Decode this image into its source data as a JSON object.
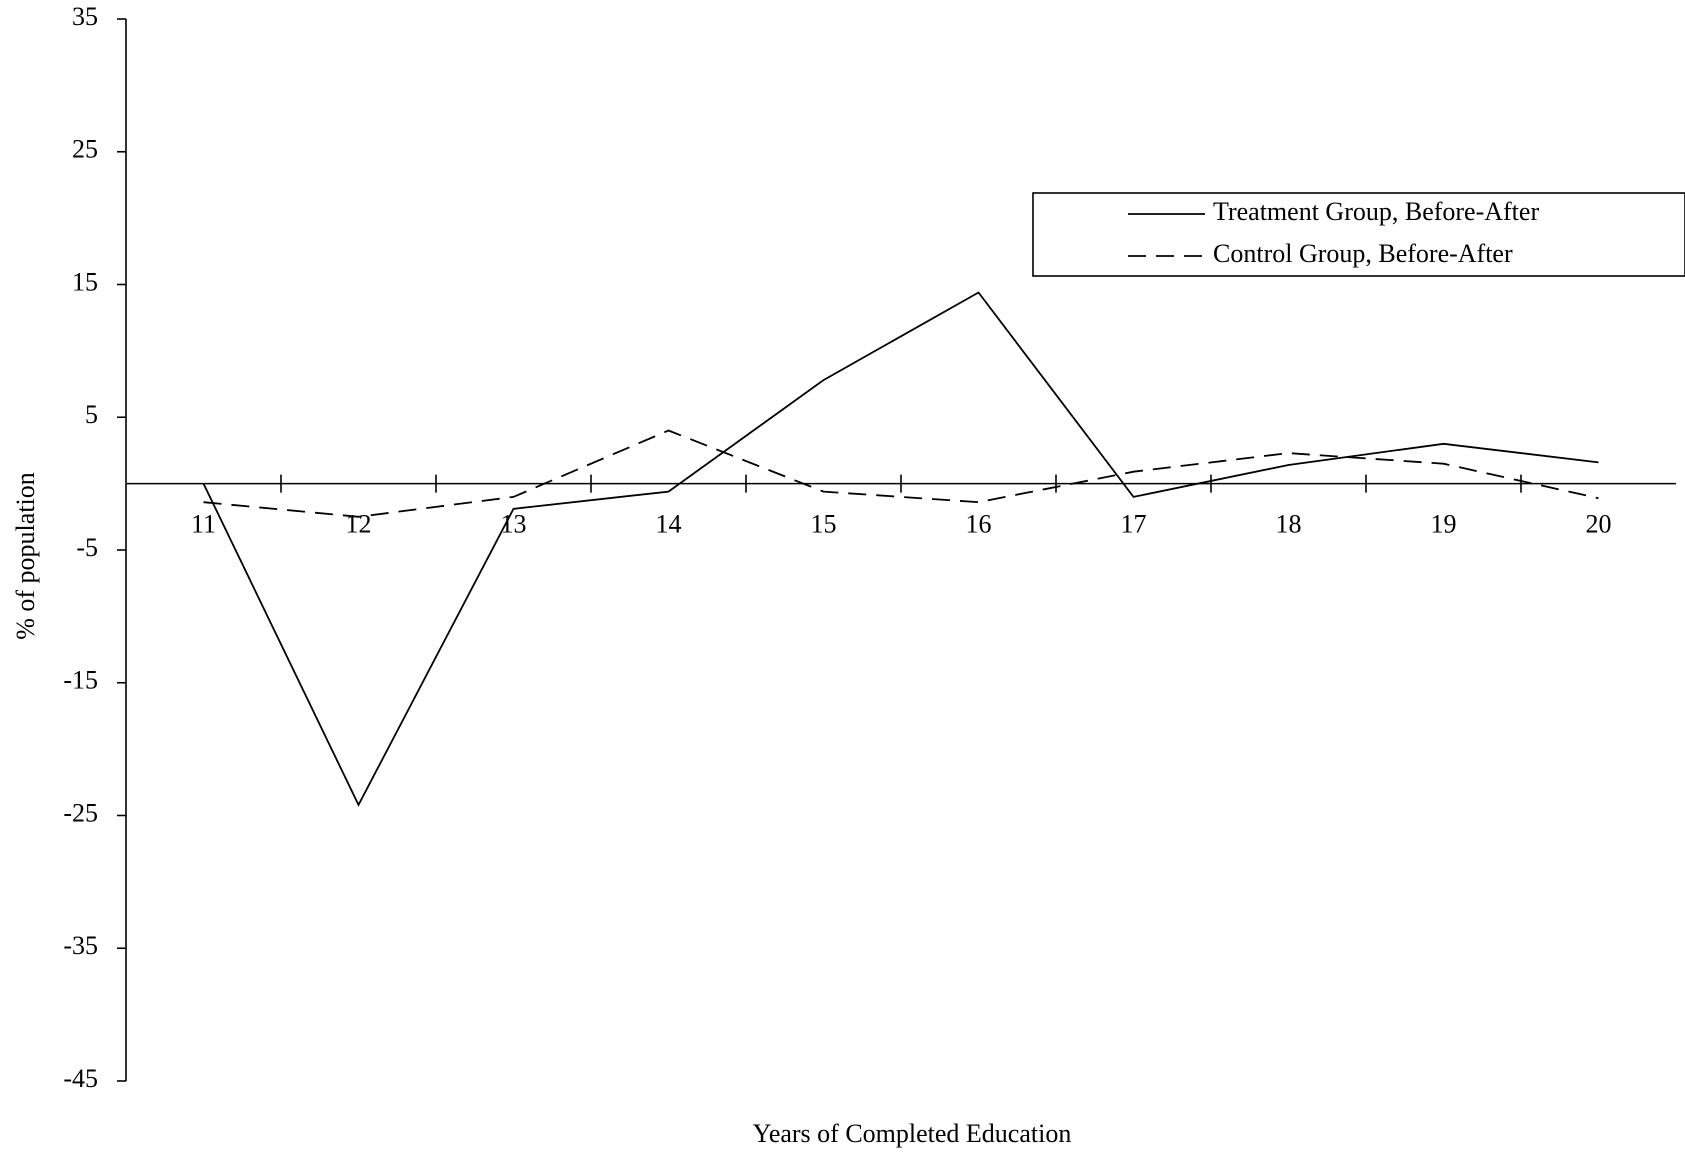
{
  "chart_data": {
    "type": "line",
    "x_label": "Years of Completed Education",
    "y_label": "% of population",
    "categories": [
      "11",
      "12",
      "13",
      "14",
      "15",
      "16",
      "17",
      "18",
      "19",
      "20"
    ],
    "series": [
      {
        "name": "Treatment Group, Before-After",
        "color": "#000000",
        "style": "solid",
        "values": [
          0,
          -24.2,
          -1.9,
          -0.6,
          7.8,
          14.4,
          -1.0,
          1.4,
          3.0,
          1.6
        ]
      },
      {
        "name": "Control Group, Before-After",
        "color": "#000000",
        "style": "dashed",
        "values": [
          -1.4,
          -2.5,
          -1.0,
          4.0,
          -0.6,
          -1.4,
          0.9,
          2.3,
          1.5,
          -1.1
        ]
      }
    ],
    "ylim": [
      -45,
      35
    ],
    "yticks": [
      -45,
      -35,
      -25,
      -15,
      -5,
      5,
      15,
      25,
      35
    ],
    "grid": false,
    "legend": "upper right"
  }
}
